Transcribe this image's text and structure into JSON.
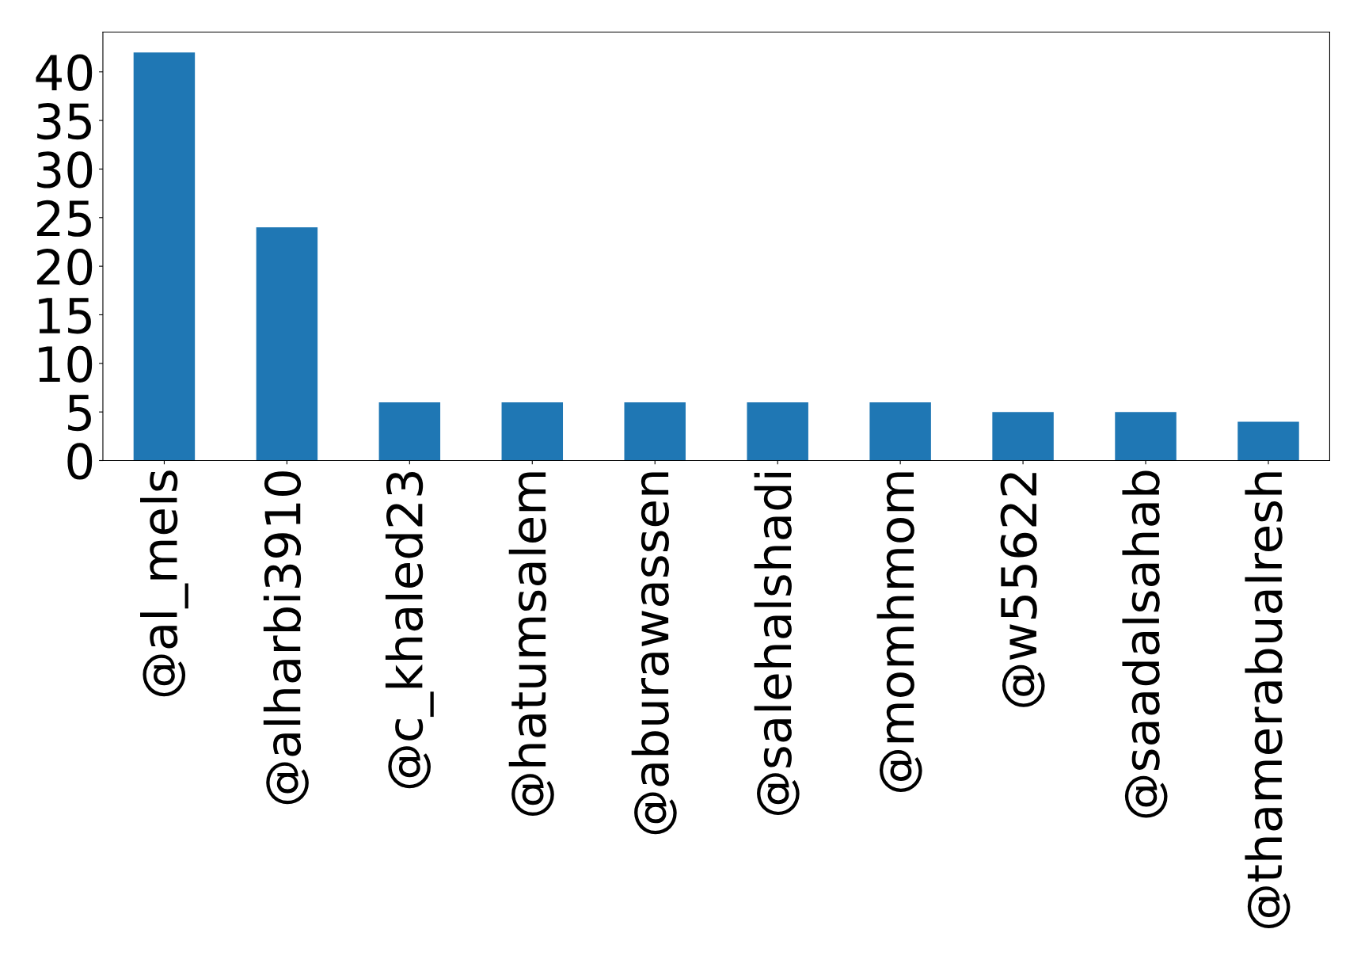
{
  "chart_data": {
    "type": "bar",
    "categories": [
      "@al_mels",
      "@alharbi3910",
      "@c_khaled23",
      "@hatumsalem",
      "@aburawassen",
      "@salehalshadi",
      "@momhmom",
      "@w55622",
      "@saadalsahab",
      "@thamerabualresh"
    ],
    "values": [
      42,
      24,
      6,
      6,
      6,
      6,
      6,
      5,
      5,
      4
    ],
    "color": "#1f77b4",
    "ylim": [
      0,
      44.1
    ],
    "yticks": [
      0,
      5,
      10,
      15,
      20,
      25,
      30,
      35,
      40
    ]
  }
}
